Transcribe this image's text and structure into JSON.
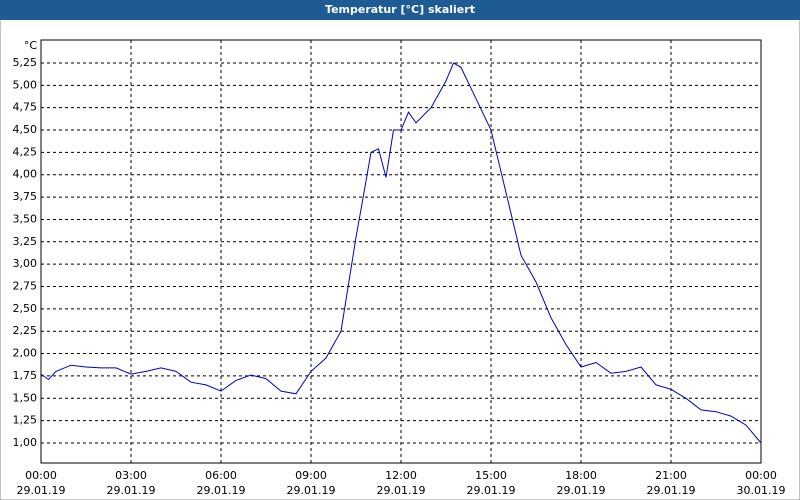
{
  "chart_data": {
    "type": "line",
    "title": "Temperatur [°C] skaliert",
    "y_label": "°C",
    "x": [
      0,
      0.25,
      0.5,
      1,
      1.5,
      2,
      2.5,
      3,
      3.5,
      4,
      4.5,
      5,
      5.5,
      6,
      6.5,
      7,
      7.5,
      8,
      8.5,
      9,
      9.5,
      10,
      10.5,
      10.75,
      11,
      11.25,
      11.5,
      11.75,
      12,
      12.25,
      12.5,
      13,
      13.5,
      13.75,
      14,
      14.5,
      15,
      15.5,
      16,
      16.5,
      17,
      17.5,
      18,
      18.5,
      19,
      19.5,
      20,
      20.5,
      21,
      21.5,
      22,
      22.5,
      23,
      23.5,
      24
    ],
    "series": [
      {
        "name": "Temperatur",
        "color": "#0000c8",
        "values": [
          1.77,
          1.71,
          1.8,
          1.87,
          1.85,
          1.84,
          1.84,
          1.77,
          1.8,
          1.84,
          1.8,
          1.68,
          1.65,
          1.58,
          1.7,
          1.76,
          1.72,
          1.58,
          1.55,
          1.8,
          1.95,
          2.25,
          3.3,
          3.77,
          4.25,
          4.29,
          3.97,
          4.5,
          4.5,
          4.7,
          4.58,
          4.75,
          5.05,
          5.25,
          5.2,
          4.85,
          4.5,
          3.8,
          3.1,
          2.8,
          2.4,
          2.1,
          1.85,
          1.9,
          1.78,
          1.8,
          1.85,
          1.65,
          1.6,
          1.5,
          1.37,
          1.35,
          1.3,
          1.2,
          1.0
        ]
      }
    ],
    "xlim": [
      0,
      24
    ],
    "xticks": [
      {
        "value": 0,
        "label": "00:00"
      },
      {
        "value": 3,
        "label": "03:00"
      },
      {
        "value": 6,
        "label": "06:00"
      },
      {
        "value": 9,
        "label": "09:00"
      },
      {
        "value": 12,
        "label": "12:00"
      },
      {
        "value": 15,
        "label": "15:00"
      },
      {
        "value": 18,
        "label": "18:00"
      },
      {
        "value": 21,
        "label": "21:00"
      },
      {
        "value": 24,
        "label": "00:00"
      }
    ],
    "xtick_dates": [
      "29.01.19",
      "29.01.19",
      "29.01.19",
      "29.01.19",
      "29.01.19",
      "29.01.19",
      "29.01.19",
      "29.01.19",
      "30.01.19"
    ],
    "ylim": [
      0.776,
      5.507
    ],
    "yticks": [
      {
        "value": 1,
        "label": "1,00"
      },
      {
        "value": 1.25,
        "label": "1,25"
      },
      {
        "value": 1.5,
        "label": "1,50"
      },
      {
        "value": 1.75,
        "label": "1,75"
      },
      {
        "value": 2,
        "label": "2,00"
      },
      {
        "value": 2.25,
        "label": "2,25"
      },
      {
        "value": 2.5,
        "label": "2,50"
      },
      {
        "value": 2.75,
        "label": "2,75"
      },
      {
        "value": 3,
        "label": "3,00"
      },
      {
        "value": 3.25,
        "label": "3,25"
      },
      {
        "value": 3.5,
        "label": "3,50"
      },
      {
        "value": 3.75,
        "label": "3,75"
      },
      {
        "value": 4,
        "label": "4,00"
      },
      {
        "value": 4.25,
        "label": "4,25"
      },
      {
        "value": 4.5,
        "label": "4,50"
      },
      {
        "value": 4.75,
        "label": "4,75"
      },
      {
        "value": 5,
        "label": "5,00"
      },
      {
        "value": 5.25,
        "label": "5,25"
      }
    ],
    "grid": true
  }
}
